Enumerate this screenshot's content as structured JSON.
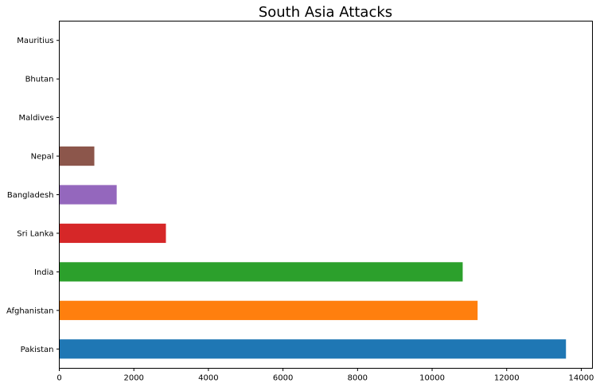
{
  "chart_data": {
    "type": "bar",
    "orientation": "horizontal",
    "title": "South Asia Attacks",
    "xlabel": "",
    "ylabel": "",
    "categories": [
      "Pakistan",
      "Afghanistan",
      "India",
      "Sri Lanka",
      "Bangladesh",
      "Nepal",
      "Maldives",
      "Bhutan",
      "Mauritius"
    ],
    "values": [
      13590,
      11220,
      10820,
      2860,
      1540,
      940,
      3,
      2,
      1
    ],
    "colors": [
      "#1f77b4",
      "#ff7f0e",
      "#2ca02c",
      "#d62728",
      "#9467bd",
      "#8c564b",
      "#e377c2",
      "#7f7f7f",
      "#bcbd22"
    ],
    "xlim": [
      0,
      14300
    ],
    "xticks": [
      0,
      2000,
      4000,
      6000,
      8000,
      10000,
      12000,
      14000
    ],
    "grid": false,
    "legend": "none"
  }
}
